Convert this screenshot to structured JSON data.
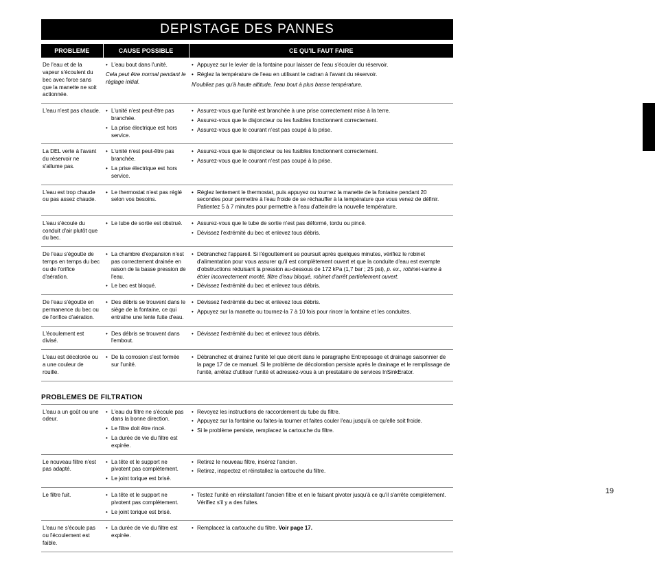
{
  "title": "DEPISTAGE DES PANNES",
  "headers": {
    "problem": "PROBLEME",
    "cause": "CAUSE POSSIBLE",
    "action": "CE QU'IL FAUT FAIRE"
  },
  "rows": [
    {
      "problem": "De l'eau et de la vapeur s'écoulent du bec avec force sans que la manette ne soit actionnée.",
      "causes": [
        "L'eau bout dans l'unité."
      ],
      "cause_note": "Cela peut être normal pendant le réglage initial.",
      "actions": [
        "Appuyez sur le levier de la fontaine pour laisser de l'eau s'écouler du réservoir.",
        "Réglez la température de l'eau en utilisant le cadran à l'avant du réservoir."
      ],
      "action_note": "N'oubliez pas qu'à haute altitude, l'eau bout à plus basse température."
    },
    {
      "problem": "L'eau n'est pas chaude.",
      "causes": [
        "L'unité n'est peut-être pas branchée.",
        "La prise électrique est hors service."
      ],
      "actions": [
        "Assurez-vous que l'unité est branchée à une prise correctement mise à la terre.",
        "Assurez-vous que le disjoncteur ou les fusibles fonctionnent correctement.",
        "Assurez-vous que le courant n'est pas coupé à la prise."
      ]
    },
    {
      "problem": "La DEL verte à l'avant du réservoir ne s'allume pas.",
      "causes": [
        "L'unité n'est peut-être pas branchée.",
        "La prise électrique est hors service."
      ],
      "actions": [
        "Assurez-vous que le disjoncteur ou les fusibles fonctionnent correctement.",
        "Assurez-vous que le courant n'est pas coupé à la prise."
      ]
    },
    {
      "problem": "L'eau est trop chaude ou pas assez chaude.",
      "causes": [
        "Le thermostat n'est pas réglé selon vos besoins."
      ],
      "actions": [
        "Réglez lentement le thermostat, puis appuyez ou tournez la manette de la fontaine pendant 20 secondes pour permettre à l'eau froide de se réchauffer à la température que vous venez de définir. Patientez 5 à 7 minutes pour permettre à l'eau d'atteindre la nouvelle température."
      ]
    },
    {
      "problem": "L'eau s'écoule du conduit d'air plutôt que du bec.",
      "causes": [
        "Le tube de sortie est obstrué."
      ],
      "actions": [
        "Assurez-vous que le tube de sortie n'est pas déformé, tordu ou pincé.",
        "Dévissez l'extrémité du bec et enlevez tous débris."
      ]
    },
    {
      "problem": "De l'eau s'égoutte de temps en temps du bec ou de l'orifice d'aération.",
      "causes": [
        "La chambre d'expansion n'est pas correctement drainée en raison de la basse pression de l'eau.",
        "Le bec est bloqué."
      ],
      "actions_html": [
        "Débranchez l'appareil. Si l'égouttement se poursuit après quelques minutes, vérifiez le robinet d'alimentation pour vous assurer qu'il est complètement ouvert et que la conduite d'eau est exempte d'obstructions réduisant la pression au-dessous de 172 kPa (1,7 bar ; 25 psi), <span class=\"italic\">p. ex., robinet-vanne à étrier incorrectement monté, filtre d'eau bloqué, robinet d'arrêt partiellement ouvert.</span>",
        "Dévissez l'extrémité du bec et enlevez tous débris."
      ]
    },
    {
      "problem": "De l'eau s'égoutte en permanence du bec ou de l'orifice d'aération.",
      "causes": [
        "Des débris se trouvent dans le siège de la fontaine, ce qui entraîne une lente fuite d'eau."
      ],
      "actions": [
        "Dévissez l'extrémité du bec et enlevez tous débris.",
        "Appuyez sur la manette ou tournez-la 7 à 10 fois pour rincer la fontaine et les conduites."
      ]
    },
    {
      "problem": "L'écoulement est divisé.",
      "causes": [
        "Des débris se trouvent dans l'embout."
      ],
      "actions": [
        "Dévissez l'extrémité du bec et enlevez tous débris."
      ]
    },
    {
      "problem": "L'eau est décolorée ou a une couleur de rouille.",
      "causes": [
        "De la corrosion s'est formée sur l'unité."
      ],
      "actions": [
        "Débranchez et drainez l'unité tel que décrit dans le paragraphe Entreposage et drainage saisonnier de la page 17 de ce manuel. Si le problème de décoloration persiste après le drainage et le remplissage de l'unité, arrêtez d'utiliser l'unité et adressez-vous à un prestataire de services InSinkErator."
      ]
    }
  ],
  "filtration_heading": "PROBLEMES DE FILTRATION",
  "filtration_rows": [
    {
      "problem": "L'eau a un goût ou une odeur.",
      "causes": [
        "L'eau du filtre ne s'écoule pas dans la bonne direction.",
        "Le filtre doit être rincé.",
        "La durée de vie du filtre est expirée."
      ],
      "actions": [
        "Revoyez les instructions de raccordement du tube du filtre.",
        "Appuyez sur la fontaine ou faites-la tourner et faites couler l'eau jusqu'à ce qu'elle soit froide.",
        "Si le problème persiste, remplacez la cartouche du filtre."
      ]
    },
    {
      "problem": "Le nouveau filtre n'est pas adapté.",
      "causes": [
        "La tête et le support ne pivotent pas complètement.",
        "Le joint torique est brisé."
      ],
      "actions": [
        "Retirez le nouveau filtre, insérez l'ancien.",
        "Retirez, inspectez et réinstallez la cartouche du filtre."
      ]
    },
    {
      "problem": "Le filtre fuit.",
      "causes": [
        "La tête et le support ne pivotent pas complètement.",
        "Le joint torique est brisé."
      ],
      "actions": [
        "Testez l'unité en réinstallant l'ancien filtre et en le faisant pivoter jusqu'à ce qu'il s'arrête complètement. Vérifiez s'il y a des fuites."
      ]
    },
    {
      "problem": "L'eau ne s'écoule pas ou l'écoulement est faible.",
      "causes": [
        "La durée de vie du filtre est expirée."
      ],
      "actions_html": [
        "Remplacez la cartouche du filtre. <span class=\"bold\">Voir page 17.</span>"
      ]
    }
  ],
  "page_number": "19"
}
